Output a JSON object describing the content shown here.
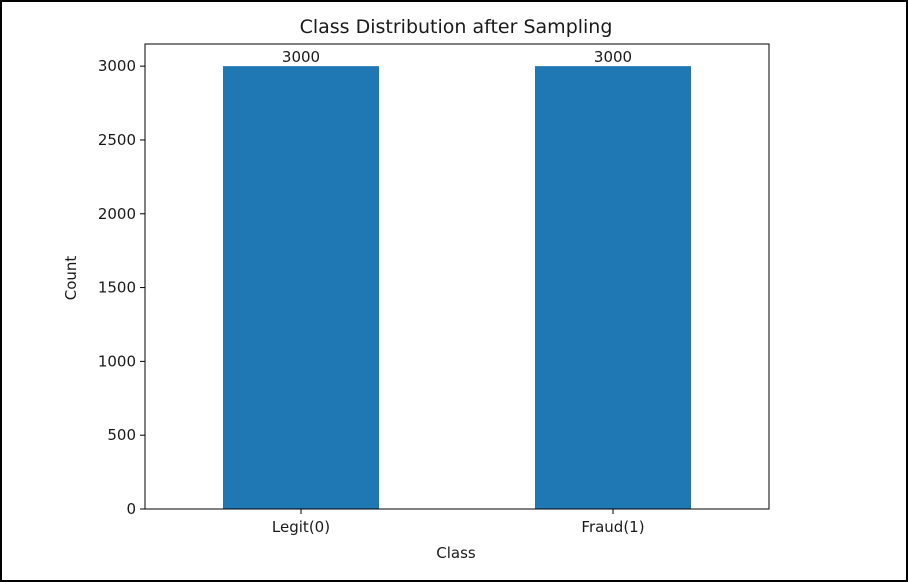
{
  "chart_data": {
    "type": "bar",
    "title": "Class Distribution after Sampling",
    "xlabel": "Class",
    "ylabel": "Count",
    "categories": [
      "Legit(0)",
      "Fraud(1)"
    ],
    "values": [
      3000,
      3000
    ],
    "data_labels": [
      "3000",
      "3000"
    ],
    "ylim": [
      0,
      3150
    ],
    "yticks": [
      0,
      500,
      1000,
      1500,
      2000,
      2500,
      3000
    ],
    "ytick_labels": [
      "0",
      "500",
      "1000",
      "1500",
      "2000",
      "2500",
      "3000"
    ],
    "grid": false,
    "legend": "none",
    "bar_color": "#1f77b4"
  }
}
